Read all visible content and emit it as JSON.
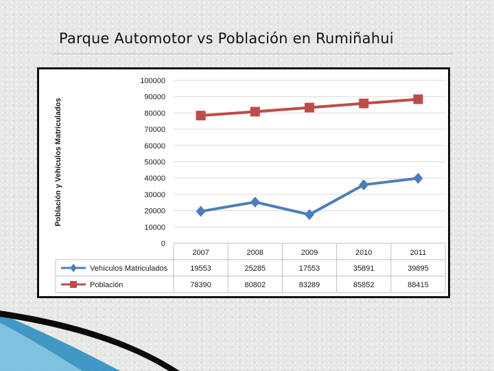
{
  "slide": {
    "title": "Parque Automotor vs Población en Rumiñahui"
  },
  "colors": {
    "series_blue": "#4a7ebb",
    "series_red": "#be4b48",
    "grid": "#d9d9d9",
    "swoosh_dark": "#0b0b0b",
    "swoosh_blue": "#2f8fc0"
  },
  "chart_data": {
    "type": "line",
    "ylabel": "Población y Vehículos Matriculados",
    "xlabel": "",
    "ylim": [
      0,
      100000
    ],
    "yticks": [
      0,
      10000,
      20000,
      30000,
      40000,
      50000,
      60000,
      70000,
      80000,
      90000,
      100000
    ],
    "categories": [
      "2007",
      "2008",
      "2009",
      "2010",
      "2011"
    ],
    "grid": true,
    "legend": "data-table-left",
    "series": [
      {
        "name": "Vehículos Matriculados",
        "values": [
          19553,
          25285,
          17553,
          35891,
          39895
        ],
        "labels": [
          "19553",
          "25285",
          "17553",
          "35891",
          "39895"
        ],
        "color": "#4a7ebb",
        "marker": "diamond"
      },
      {
        "name": "Población",
        "values": [
          78390,
          80802,
          83289,
          85852,
          88415
        ],
        "labels": [
          "78390",
          "80802",
          "83289",
          "85852",
          "88415"
        ],
        "color": "#be4b48",
        "marker": "square"
      }
    ]
  }
}
